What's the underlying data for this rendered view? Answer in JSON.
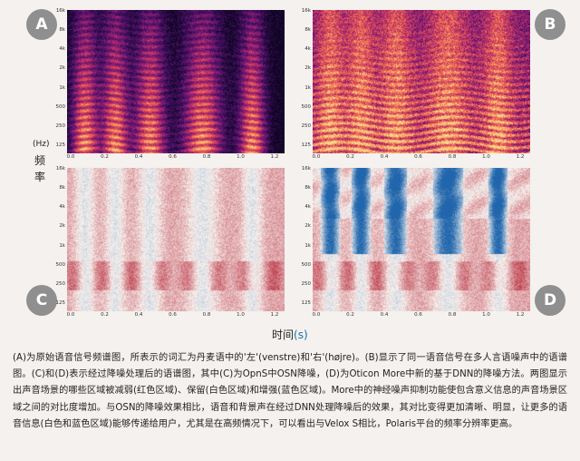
{
  "figure": {
    "panels": [
      {
        "id": "A",
        "type": "spectrogram"
      },
      {
        "id": "B",
        "type": "spectrogram"
      },
      {
        "id": "C",
        "type": "contrast"
      },
      {
        "id": "D",
        "type": "contrast"
      }
    ],
    "y_ticks": [
      "16k",
      "8k",
      "4k",
      "2k",
      "1k",
      "500",
      "250",
      "125"
    ],
    "x_ticks_left": [
      "0.0",
      "0.2",
      "0.4",
      "0.6",
      "0.8",
      "1.0",
      "1.2"
    ],
    "x_ticks_right": [
      "0.0",
      "0.2",
      "0.4",
      "0.6",
      "0.8",
      "1.0",
      "1.2"
    ],
    "y_axis_label": [
      "(Hz)",
      "频",
      "率"
    ],
    "x_axis_label": "时间",
    "x_axis_unit": "(s)",
    "colors": {
      "background": "#f4f1ee",
      "badge": "#8f8f8f",
      "spectro_low": "#1a0630",
      "spectro_high": "#fcd36b",
      "contrast_red": "#b2182b",
      "contrast_blue": "#2166ac",
      "unit_blue": "#1a6fb3"
    }
  },
  "caption": "(A)为原始语音信号频谱图，所表示的词汇为丹麦语中的'左'(venstre)和'右'(højre)。(B)显示了同一语音信号在多人言语噪声中的语谱图。(C)和(D)表示经过降噪处理后的语谱图，其中(C)为OpnS中OSN降噪，(D)为Oticon More中新的基于DNN的降噪方法。两图显示出声音场景的哪些区域被减弱(红色区域)、保留(白色区域)和增强(蓝色区域)。More中的神经噪声抑制功能使包含意义信息的声音场景区域之间的对比度增加。与OSN的降噪效果相比，语音和背景声在经过DNN处理降噪后的效果，其对比变得更加清晰、明显，让更多的语音信息(白色和蓝色区域)能够传递给用户，尤其是在高频情况下，可以看出与Velox S相比，Polaris平台的频率分辨率更高。"
}
